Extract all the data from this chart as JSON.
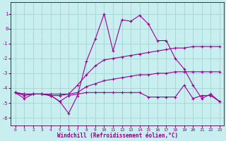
{
  "xlabel": "Windchill (Refroidissement éolien,°C)",
  "bg_color": "#c8eef0",
  "line_color": "#990099",
  "grid_color": "#9ecfcf",
  "xlim": [
    -0.5,
    23.5
  ],
  "ylim": [
    -6.5,
    1.8
  ],
  "yticks": [
    1,
    0,
    -1,
    -2,
    -3,
    -4,
    -5,
    -6
  ],
  "xticks": [
    0,
    1,
    2,
    3,
    4,
    5,
    6,
    7,
    8,
    9,
    10,
    11,
    12,
    13,
    14,
    15,
    16,
    17,
    18,
    19,
    20,
    21,
    22,
    23
  ],
  "lines": [
    {
      "x": [
        0,
        1,
        2,
        3,
        4,
        5,
        6,
        7,
        8,
        9,
        10,
        11,
        12,
        13,
        14,
        15,
        16,
        17,
        18,
        19,
        20,
        21,
        22,
        23
      ],
      "y": [
        -4.3,
        -4.7,
        -4.4,
        -4.4,
        -4.5,
        -4.9,
        -5.7,
        -4.5,
        -2.2,
        -0.7,
        1.0,
        -1.5,
        0.6,
        0.5,
        0.9,
        0.3,
        -0.8,
        -0.8,
        -2.0,
        -2.7,
        -3.8,
        -4.7,
        -4.4,
        -4.9
      ]
    },
    {
      "x": [
        0,
        1,
        2,
        3,
        4,
        5,
        6,
        7,
        8,
        9,
        10,
        11,
        12,
        13,
        14,
        15,
        16,
        17,
        18,
        19,
        20,
        21,
        22,
        23
      ],
      "y": [
        -4.3,
        -4.4,
        -4.4,
        -4.4,
        -4.4,
        -4.4,
        -4.4,
        -3.8,
        -3.1,
        -2.5,
        -2.1,
        -2.0,
        -1.9,
        -1.8,
        -1.7,
        -1.6,
        -1.5,
        -1.4,
        -1.3,
        -1.3,
        -1.2,
        -1.2,
        -1.2,
        -1.2
      ]
    },
    {
      "x": [
        0,
        1,
        2,
        3,
        4,
        5,
        6,
        7,
        8,
        9,
        10,
        11,
        12,
        13,
        14,
        15,
        16,
        17,
        18,
        19,
        20,
        21,
        22,
        23
      ],
      "y": [
        -4.3,
        -4.4,
        -4.4,
        -4.4,
        -4.5,
        -4.5,
        -4.4,
        -4.3,
        -3.9,
        -3.7,
        -3.5,
        -3.4,
        -3.3,
        -3.2,
        -3.1,
        -3.1,
        -3.0,
        -3.0,
        -2.9,
        -2.9,
        -2.9,
        -2.9,
        -2.9,
        -2.9
      ]
    },
    {
      "x": [
        0,
        1,
        2,
        3,
        4,
        5,
        6,
        7,
        8,
        9,
        10,
        11,
        12,
        13,
        14,
        15,
        16,
        17,
        18,
        19,
        20,
        21,
        22,
        23
      ],
      "y": [
        -4.3,
        -4.5,
        -4.4,
        -4.4,
        -4.5,
        -4.9,
        -4.5,
        -4.4,
        -4.3,
        -4.3,
        -4.3,
        -4.3,
        -4.3,
        -4.3,
        -4.3,
        -4.6,
        -4.6,
        -4.6,
        -4.6,
        -3.8,
        -4.7,
        -4.5,
        -4.5,
        -4.9
      ]
    }
  ]
}
